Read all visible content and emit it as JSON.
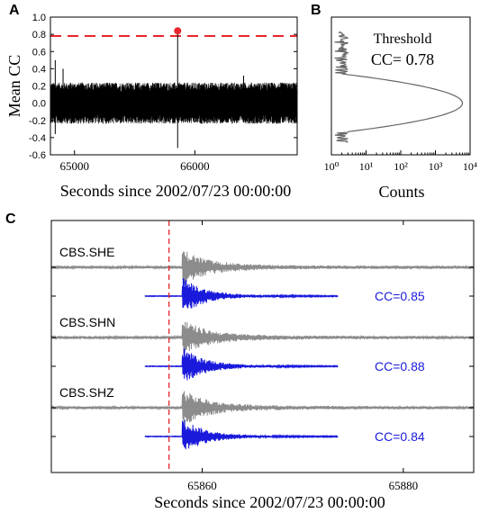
{
  "colors": {
    "threshold_line": "#e8262b",
    "peak_marker": "#e8262b",
    "cc_trace": "#000000",
    "histogram": "#666666",
    "observed_trace": "#8c8c8c",
    "template_trace": "#1a1adc",
    "pick_line": "#e8262b",
    "cc_label": "#1a1adc"
  },
  "chart_data": [
    {
      "panel": "A",
      "type": "line",
      "xlabel": "Seconds since 2002/07/23 00:00:00",
      "ylabel": "Mean CC",
      "xlim": [
        64800,
        66850
      ],
      "ylim": [
        -0.6,
        1.0
      ],
      "xticks": [
        65000,
        66000
      ],
      "yticks": [
        1.0,
        0.8,
        0.6,
        0.4,
        0.2,
        0.0,
        -0.2,
        -0.4,
        -0.6
      ],
      "ytick_labels": [
        "1.0",
        "0.8",
        "0.6",
        "0.4",
        "0.2",
        "0.0",
        "-0.2",
        "-0.4",
        "-0.6"
      ],
      "threshold": 0.78,
      "noise_band": [
        -0.24,
        0.24
      ],
      "peak": {
        "x": 65857,
        "y": 0.84
      },
      "trough": {
        "x": 65857,
        "y": -0.52
      },
      "spikes": [
        {
          "x": 64840,
          "y": 0.5
        },
        {
          "x": 64840,
          "y": -0.36
        },
        {
          "x": 64905,
          "y": 0.4
        },
        {
          "x": 66405,
          "y": 0.32
        }
      ]
    },
    {
      "panel": "B",
      "type": "line",
      "xlabel": "Counts",
      "xscale": "log",
      "xlim": [
        1,
        10000
      ],
      "ylim": [
        -0.6,
        1.0
      ],
      "xticks": [
        1,
        10,
        100,
        1000,
        10000
      ],
      "xtick_labels": [
        "10⁰",
        "10¹",
        "10²",
        "10³",
        "10⁴"
      ],
      "distribution": {
        "mean": 0.0,
        "std": 0.085,
        "peak_count": 6000
      },
      "annotation": [
        "Threshold",
        "CC= 0.78"
      ]
    },
    {
      "panel": "C",
      "type": "line",
      "xlabel": "Seconds since 2002/07/23 00:00:00",
      "xlim": [
        65845,
        65887
      ],
      "xticks": [
        65860,
        65880
      ],
      "pick_time": 65856.7,
      "template_window": [
        65854.3,
        65873.5
      ],
      "traces": [
        {
          "station": "CBS.SHE",
          "cc": "CC=0.85"
        },
        {
          "station": "CBS.SHN",
          "cc": "CC=0.88"
        },
        {
          "station": "CBS.SHZ",
          "cc": "CC=0.84"
        }
      ]
    }
  ]
}
